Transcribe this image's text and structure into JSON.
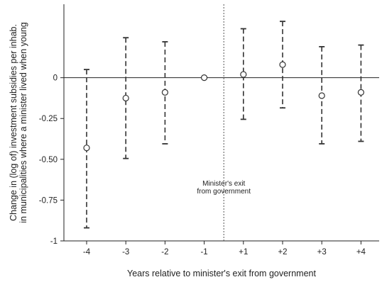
{
  "chart_data": {
    "type": "scatter",
    "title": "",
    "xlabel": "Years relative to minister's exit from government",
    "ylabel_lines": [
      "Change in (log of) investment subsidies per inhab.",
      "in municipalities where a minister lived when young"
    ],
    "categories": [
      "-4",
      "-3",
      "-2",
      "-1",
      "+1",
      "+2",
      "+3",
      "+4"
    ],
    "estimates": [
      -0.43,
      -0.125,
      -0.09,
      0.0,
      0.02,
      0.08,
      -0.11,
      -0.09
    ],
    "ci_lower": [
      -0.92,
      -0.495,
      -0.405,
      0.0,
      -0.255,
      -0.185,
      -0.405,
      -0.39
    ],
    "ci_upper": [
      0.05,
      0.245,
      0.22,
      0.0,
      0.3,
      0.345,
      0.19,
      0.2
    ],
    "ylim": [
      -1,
      0.45
    ],
    "yticks": [
      -1,
      -0.75,
      -0.5,
      -0.25,
      0
    ],
    "ytick_labels": [
      "-1",
      "-0.75",
      "-0.50",
      "-0.25",
      "0"
    ],
    "reference_line_y": 0,
    "event_line_x": "between -1 and +1",
    "annotation_lines": [
      "Minister's exit",
      "from government"
    ],
    "grid": false,
    "legend": "none",
    "colors": {
      "marker": "#333333",
      "axis": "#222222",
      "text": "#222222"
    }
  }
}
